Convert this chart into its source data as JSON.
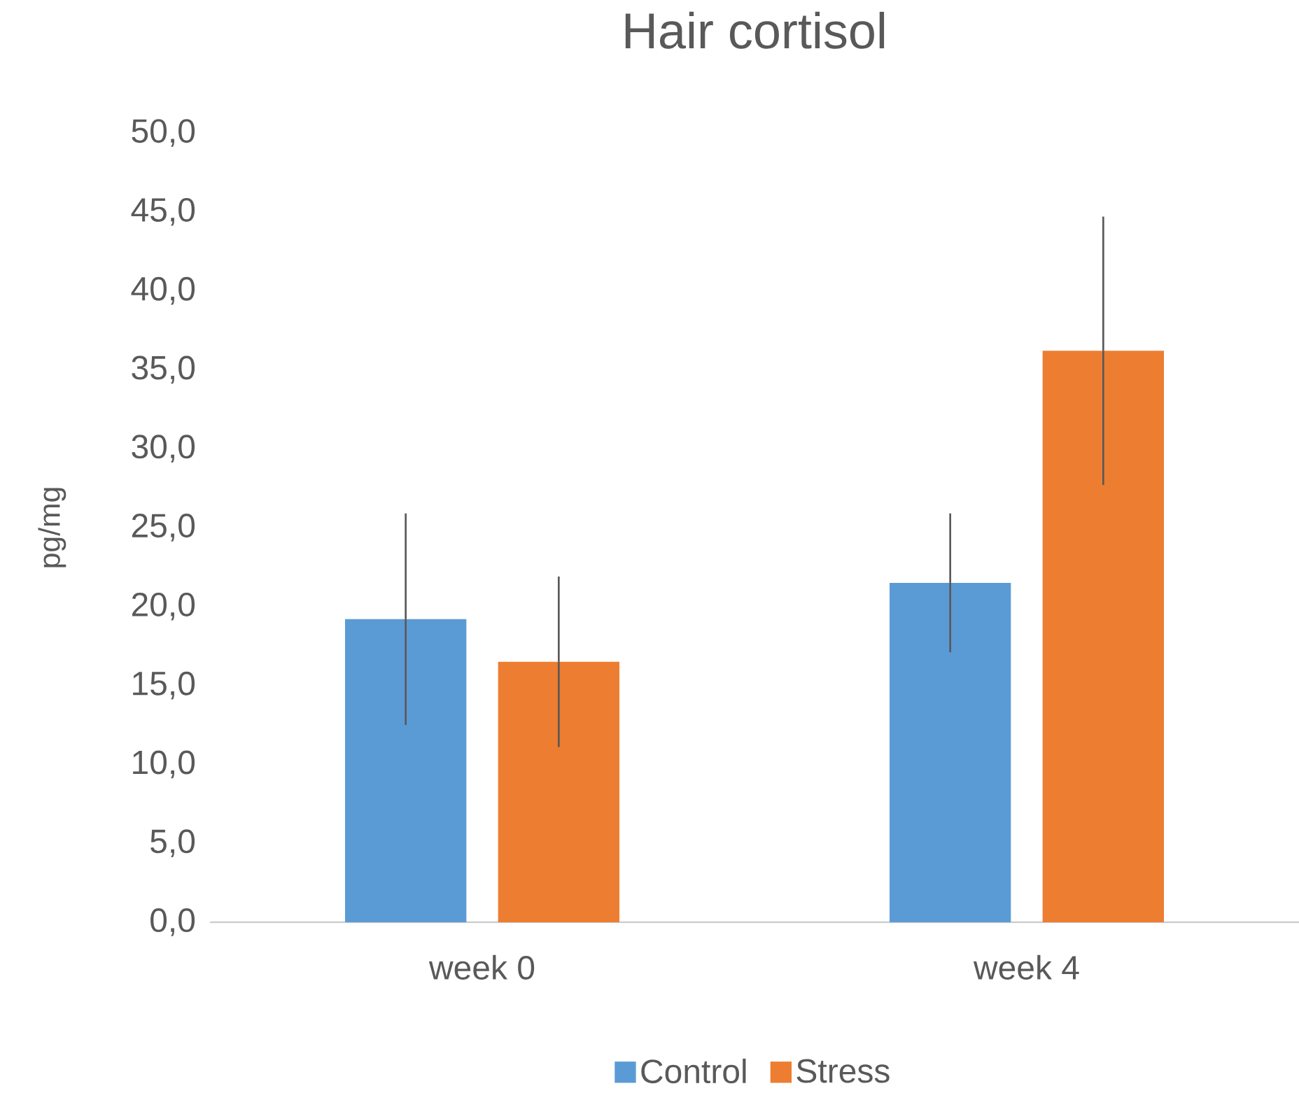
{
  "chart_data": {
    "type": "bar",
    "title": "Hair cortisol",
    "ylabel": "pg/mg",
    "categories": [
      "week 0",
      "week 4"
    ],
    "series": [
      {
        "name": "Control",
        "color": "#5b9bd5",
        "values": [
          19.2,
          21.5
        ],
        "errors": [
          6.7,
          4.4
        ]
      },
      {
        "name": "Stress",
        "color": "#ed7d31",
        "values": [
          16.5,
          36.2
        ],
        "errors": [
          5.4,
          8.5
        ]
      }
    ],
    "ylim": [
      0,
      50
    ],
    "yticks": [
      {
        "value": 0,
        "label": "0,0"
      },
      {
        "value": 5,
        "label": "5,0"
      },
      {
        "value": 10,
        "label": "10,0"
      },
      {
        "value": 15,
        "label": "15,0"
      },
      {
        "value": 20,
        "label": "20,0"
      },
      {
        "value": 25,
        "label": "25,0"
      },
      {
        "value": 30,
        "label": "30,0"
      },
      {
        "value": 35,
        "label": "35,0"
      },
      {
        "value": 40,
        "label": "40,0"
      },
      {
        "value": 45,
        "label": "45,0"
      },
      {
        "value": 50,
        "label": "50,0"
      }
    ],
    "legend": "bottom",
    "grid": false
  }
}
